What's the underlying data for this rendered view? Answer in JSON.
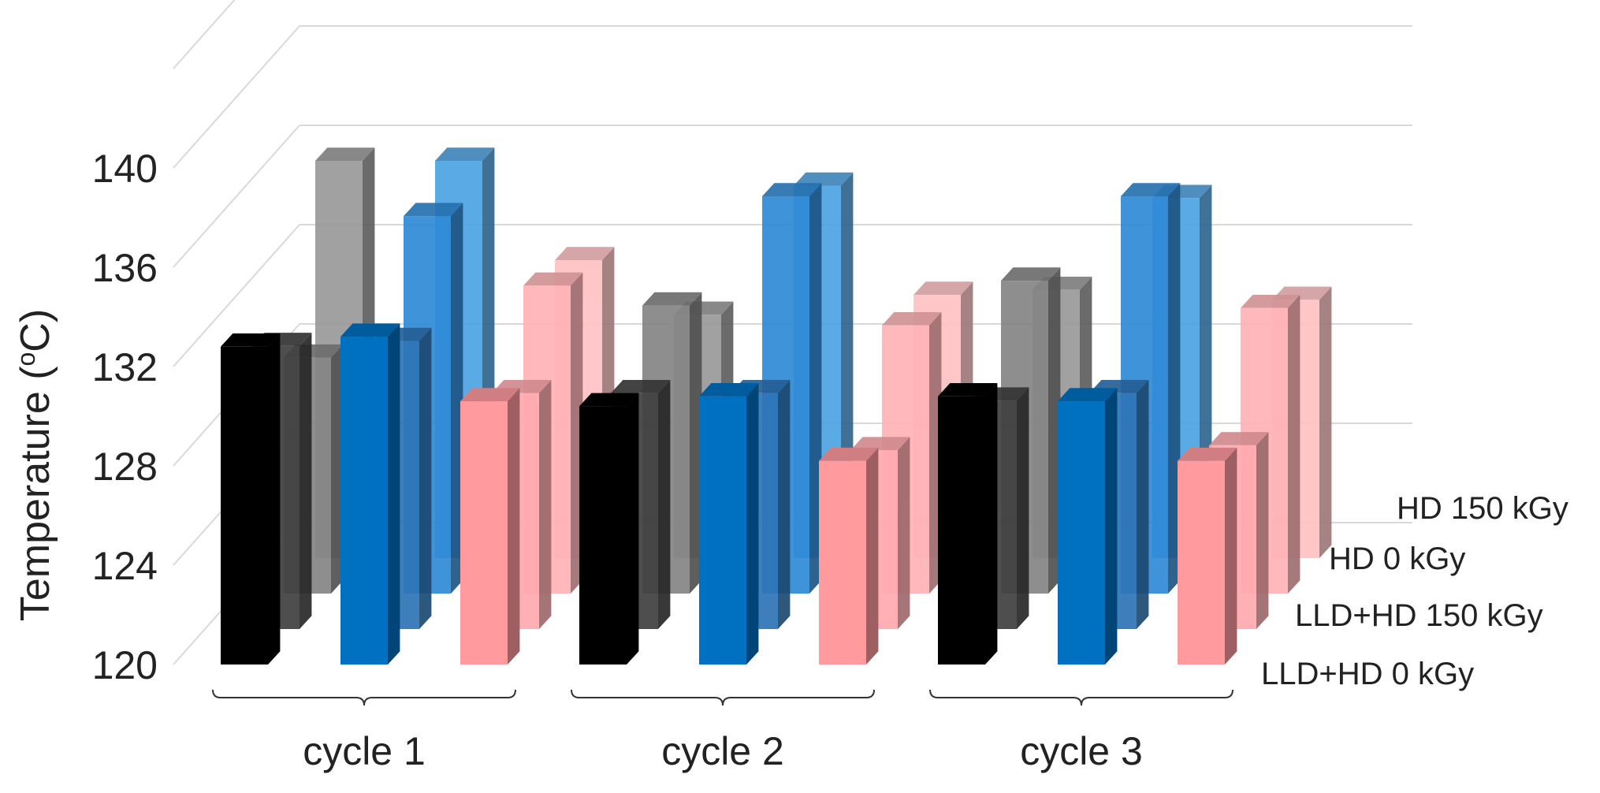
{
  "chart_data": {
    "type": "bar",
    "subtype": "3d-clustered",
    "title": "",
    "xlabel": "",
    "ylabel": "Temperature (°C)",
    "ylabel_parts": {
      "prefix": "Temperature (",
      "superscript": "o",
      "suffix": "C)"
    },
    "ylim": [
      120,
      144
    ],
    "yticks": [
      120,
      124,
      128,
      132,
      136,
      140
    ],
    "grid": true,
    "groups": [
      "cycle 1",
      "cycle 2",
      "cycle 3"
    ],
    "materials": [
      "gray/black",
      "blue",
      "pink"
    ],
    "series": [
      {
        "name": "LLD+HD 0 kGy",
        "depth": 0,
        "values": [
          [
            132.8,
            133.2,
            130.6
          ],
          [
            130.4,
            130.8,
            128.2
          ],
          [
            130.8,
            130.6,
            128.2
          ]
        ]
      },
      {
        "name": "LLD+HD 150 kGy",
        "depth": 1,
        "values": [
          [
            131.4,
            131.6,
            129.5
          ],
          [
            129.5,
            129.5,
            127.2
          ],
          [
            129.2,
            129.5,
            127.4
          ]
        ]
      },
      {
        "name": "HD 0 kGy",
        "depth": 2,
        "values": [
          [
            129.5,
            135.2,
            132.4
          ],
          [
            131.6,
            136.0,
            130.8
          ],
          [
            132.6,
            136.0,
            131.5
          ]
        ]
      },
      {
        "name": "HD 150 kGy",
        "depth": 3,
        "values": [
          [
            136.0,
            136.0,
            132.0
          ],
          [
            129.8,
            135.0,
            130.6
          ],
          [
            130.8,
            134.5,
            130.4
          ]
        ]
      }
    ],
    "colors": {
      "gray/black": [
        "#000000",
        "#404040",
        "#858585",
        "#9a9a9a"
      ],
      "blue": [
        "#0070c0",
        "#2e75b6",
        "#2f8ad6",
        "#4da3e3"
      ],
      "pink": [
        "#ff9a9e",
        "#ffaaae",
        "#ffb3b6",
        "#ffc2c4"
      ]
    }
  }
}
